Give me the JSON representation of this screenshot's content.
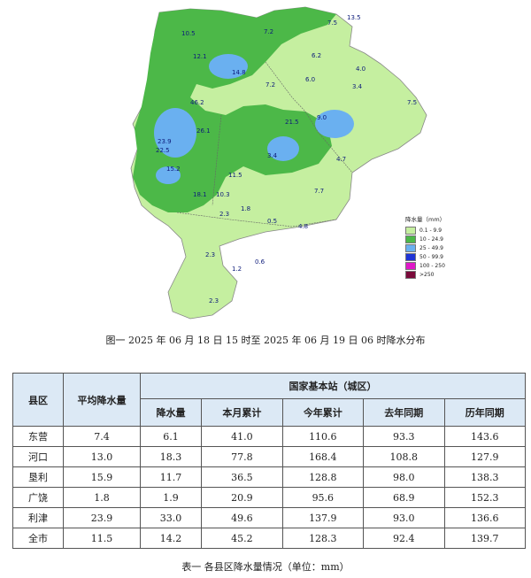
{
  "map": {
    "legend_title": "降水量（mm）",
    "legend": [
      {
        "label": "0.1 - 9.9",
        "color": "#c5efa0"
      },
      {
        "label": "10 - 24.9",
        "color": "#4cb848"
      },
      {
        "label": "25 - 49.9",
        "color": "#6ab0f0"
      },
      {
        "label": "50 - 99.9",
        "color": "#1f34d6"
      },
      {
        "label": "100 - 250",
        "color": "#e018c8"
      },
      {
        "label": ">250",
        "color": "#7a0a3a"
      }
    ],
    "values": [
      "10.5",
      "7.2",
      "7.5",
      "13.5",
      "6.2",
      "4.0",
      "12.1",
      "3.4",
      "6.0",
      "14.8",
      "7.2",
      "7.5",
      "46.2",
      "23.9",
      "9.0",
      "26.1",
      "21.5",
      "22.5",
      "15.2",
      "18.1",
      "10.3",
      "11.5",
      "7.7",
      "3.4",
      "4.7",
      "2.3",
      "1.8",
      "0.5",
      "4.8",
      "1.2",
      "2.3",
      "0.6",
      "2.3"
    ]
  },
  "figure_caption": "图一 2025 年 06 月 18 日 15 时至 2025 年 06 月 19 日 06 时降水分布",
  "table": {
    "col_county": "县区",
    "col_avg": "平均降水量",
    "col_station_group": "国家基本站（城区）",
    "col_sub": [
      "降水量",
      "本月累计",
      "今年累计",
      "去年同期",
      "历年同期"
    ],
    "rows": [
      {
        "county": "东营",
        "avg": "7.4",
        "vals": [
          "6.1",
          "41.0",
          "110.6",
          "93.3",
          "143.6"
        ]
      },
      {
        "county": "河口",
        "avg": "13.0",
        "vals": [
          "18.3",
          "77.8",
          "168.4",
          "108.8",
          "127.9"
        ]
      },
      {
        "county": "垦利",
        "avg": "15.9",
        "vals": [
          "11.7",
          "36.5",
          "128.8",
          "98.0",
          "138.3"
        ]
      },
      {
        "county": "广饶",
        "avg": "1.8",
        "vals": [
          "1.9",
          "20.9",
          "95.6",
          "68.9",
          "152.3"
        ]
      },
      {
        "county": "利津",
        "avg": "23.9",
        "vals": [
          "33.0",
          "49.6",
          "137.9",
          "93.0",
          "136.6"
        ]
      },
      {
        "county": "全市",
        "avg": "11.5",
        "vals": [
          "14.2",
          "45.2",
          "128.3",
          "92.4",
          "139.7"
        ]
      }
    ]
  },
  "table_caption": "表一  各县区降水量情况（单位：mm）"
}
